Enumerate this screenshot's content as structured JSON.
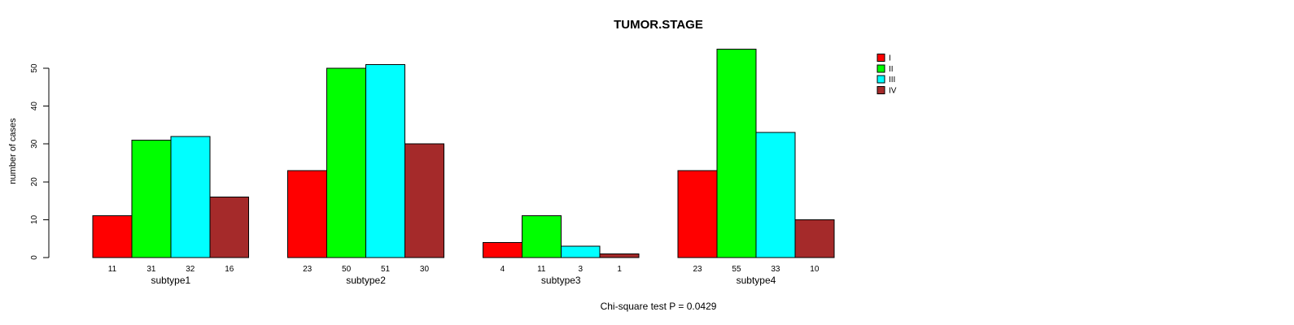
{
  "chart_data": {
    "type": "bar",
    "title": "TUMOR.STAGE",
    "xlabel": "",
    "ylabel": "number of cases",
    "annotation": "Chi-square test P = 0.0429",
    "categories": [
      "subtype1",
      "subtype2",
      "subtype3",
      "subtype4"
    ],
    "series": [
      {
        "name": "I",
        "color": "#ff0000",
        "values": [
          11,
          23,
          4,
          23
        ]
      },
      {
        "name": "II",
        "color": "#00ff00",
        "values": [
          31,
          50,
          11,
          55
        ]
      },
      {
        "name": "III",
        "color": "#00ffff",
        "values": [
          32,
          51,
          3,
          33
        ]
      },
      {
        "name": "IV",
        "color": "#a52a2a",
        "values": [
          16,
          30,
          1,
          10
        ]
      }
    ],
    "bar_value_labels": {
      "subtype1": [
        11,
        31,
        32,
        16
      ],
      "subtype2": [
        23,
        50,
        51,
        30
      ],
      "subtype3": [
        4,
        11,
        3,
        1
      ],
      "subtype4": [
        23,
        55,
        33,
        10
      ]
    },
    "yticks": [
      0,
      10,
      20,
      30,
      40,
      50
    ],
    "ylim": [
      0,
      55
    ],
    "grid": false,
    "legend_position": "top-right",
    "axis_color": "#000000",
    "bar_border_color": "#000000"
  }
}
